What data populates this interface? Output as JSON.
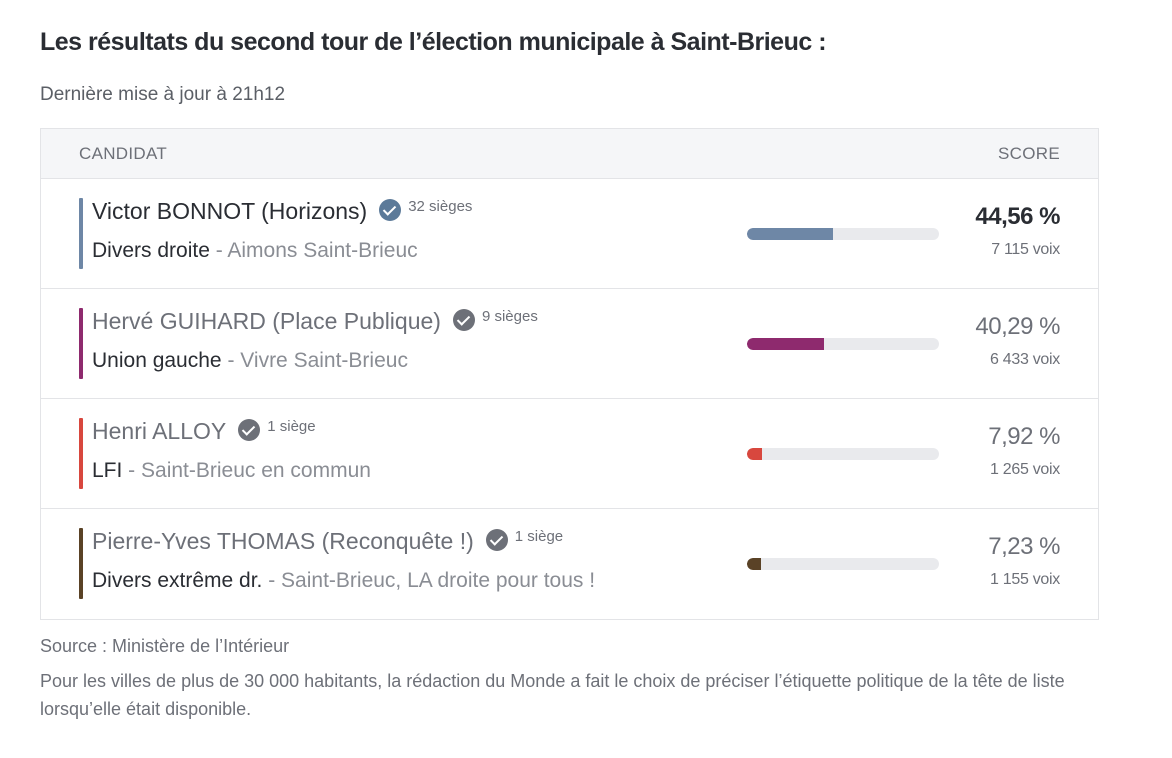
{
  "title": "Les résultats du second tour de l’élection municipale à Saint-Brieuc :",
  "updated": "Dernière mise à jour à 21h12",
  "table": {
    "header_candidate": "CANDIDAT",
    "header_score": "SCORE",
    "rows": [
      {
        "name": "Victor BONNOT (Horizons)",
        "seats": "32 sièges",
        "nuance": "Divers droite",
        "list": " - Aimons Saint-Brieuc",
        "percent": "44,56 %",
        "percent_value": 44.56,
        "votes": "7 115 voix",
        "color": "#6e87a6"
      },
      {
        "name": "Hervé GUIHARD (Place Publique)",
        "seats": "9 sièges",
        "nuance": "Union gauche",
        "list": " - Vivre Saint-Brieuc",
        "percent": "40,29 %",
        "percent_value": 40.29,
        "votes": "6 433 voix",
        "color": "#8e2a6e"
      },
      {
        "name": "Henri ALLOY",
        "seats": "1 siège",
        "nuance": "LFI",
        "list": " - Saint-Brieuc en commun",
        "percent": "7,92 %",
        "percent_value": 7.92,
        "votes": "1 265 voix",
        "color": "#d8473e"
      },
      {
        "name": "Pierre-Yves THOMAS (Reconquête !)",
        "seats": "1 siège",
        "nuance": "Divers extrême dr.",
        "list": " - Saint-Brieuc, LA droite pour tous !",
        "percent": "7,23 %",
        "percent_value": 7.23,
        "votes": "1 155 voix",
        "color": "#5a4226"
      }
    ]
  },
  "source": "Source : Ministère de l’Intérieur",
  "note": "Pour les villes de plus de 30 000 habitants, la rédaction du Monde a fait le choix de préciser l’étiquette politique de la tête de liste lorsqu’elle était disponible.",
  "icons": {
    "elected": "check-circle-icon"
  }
}
